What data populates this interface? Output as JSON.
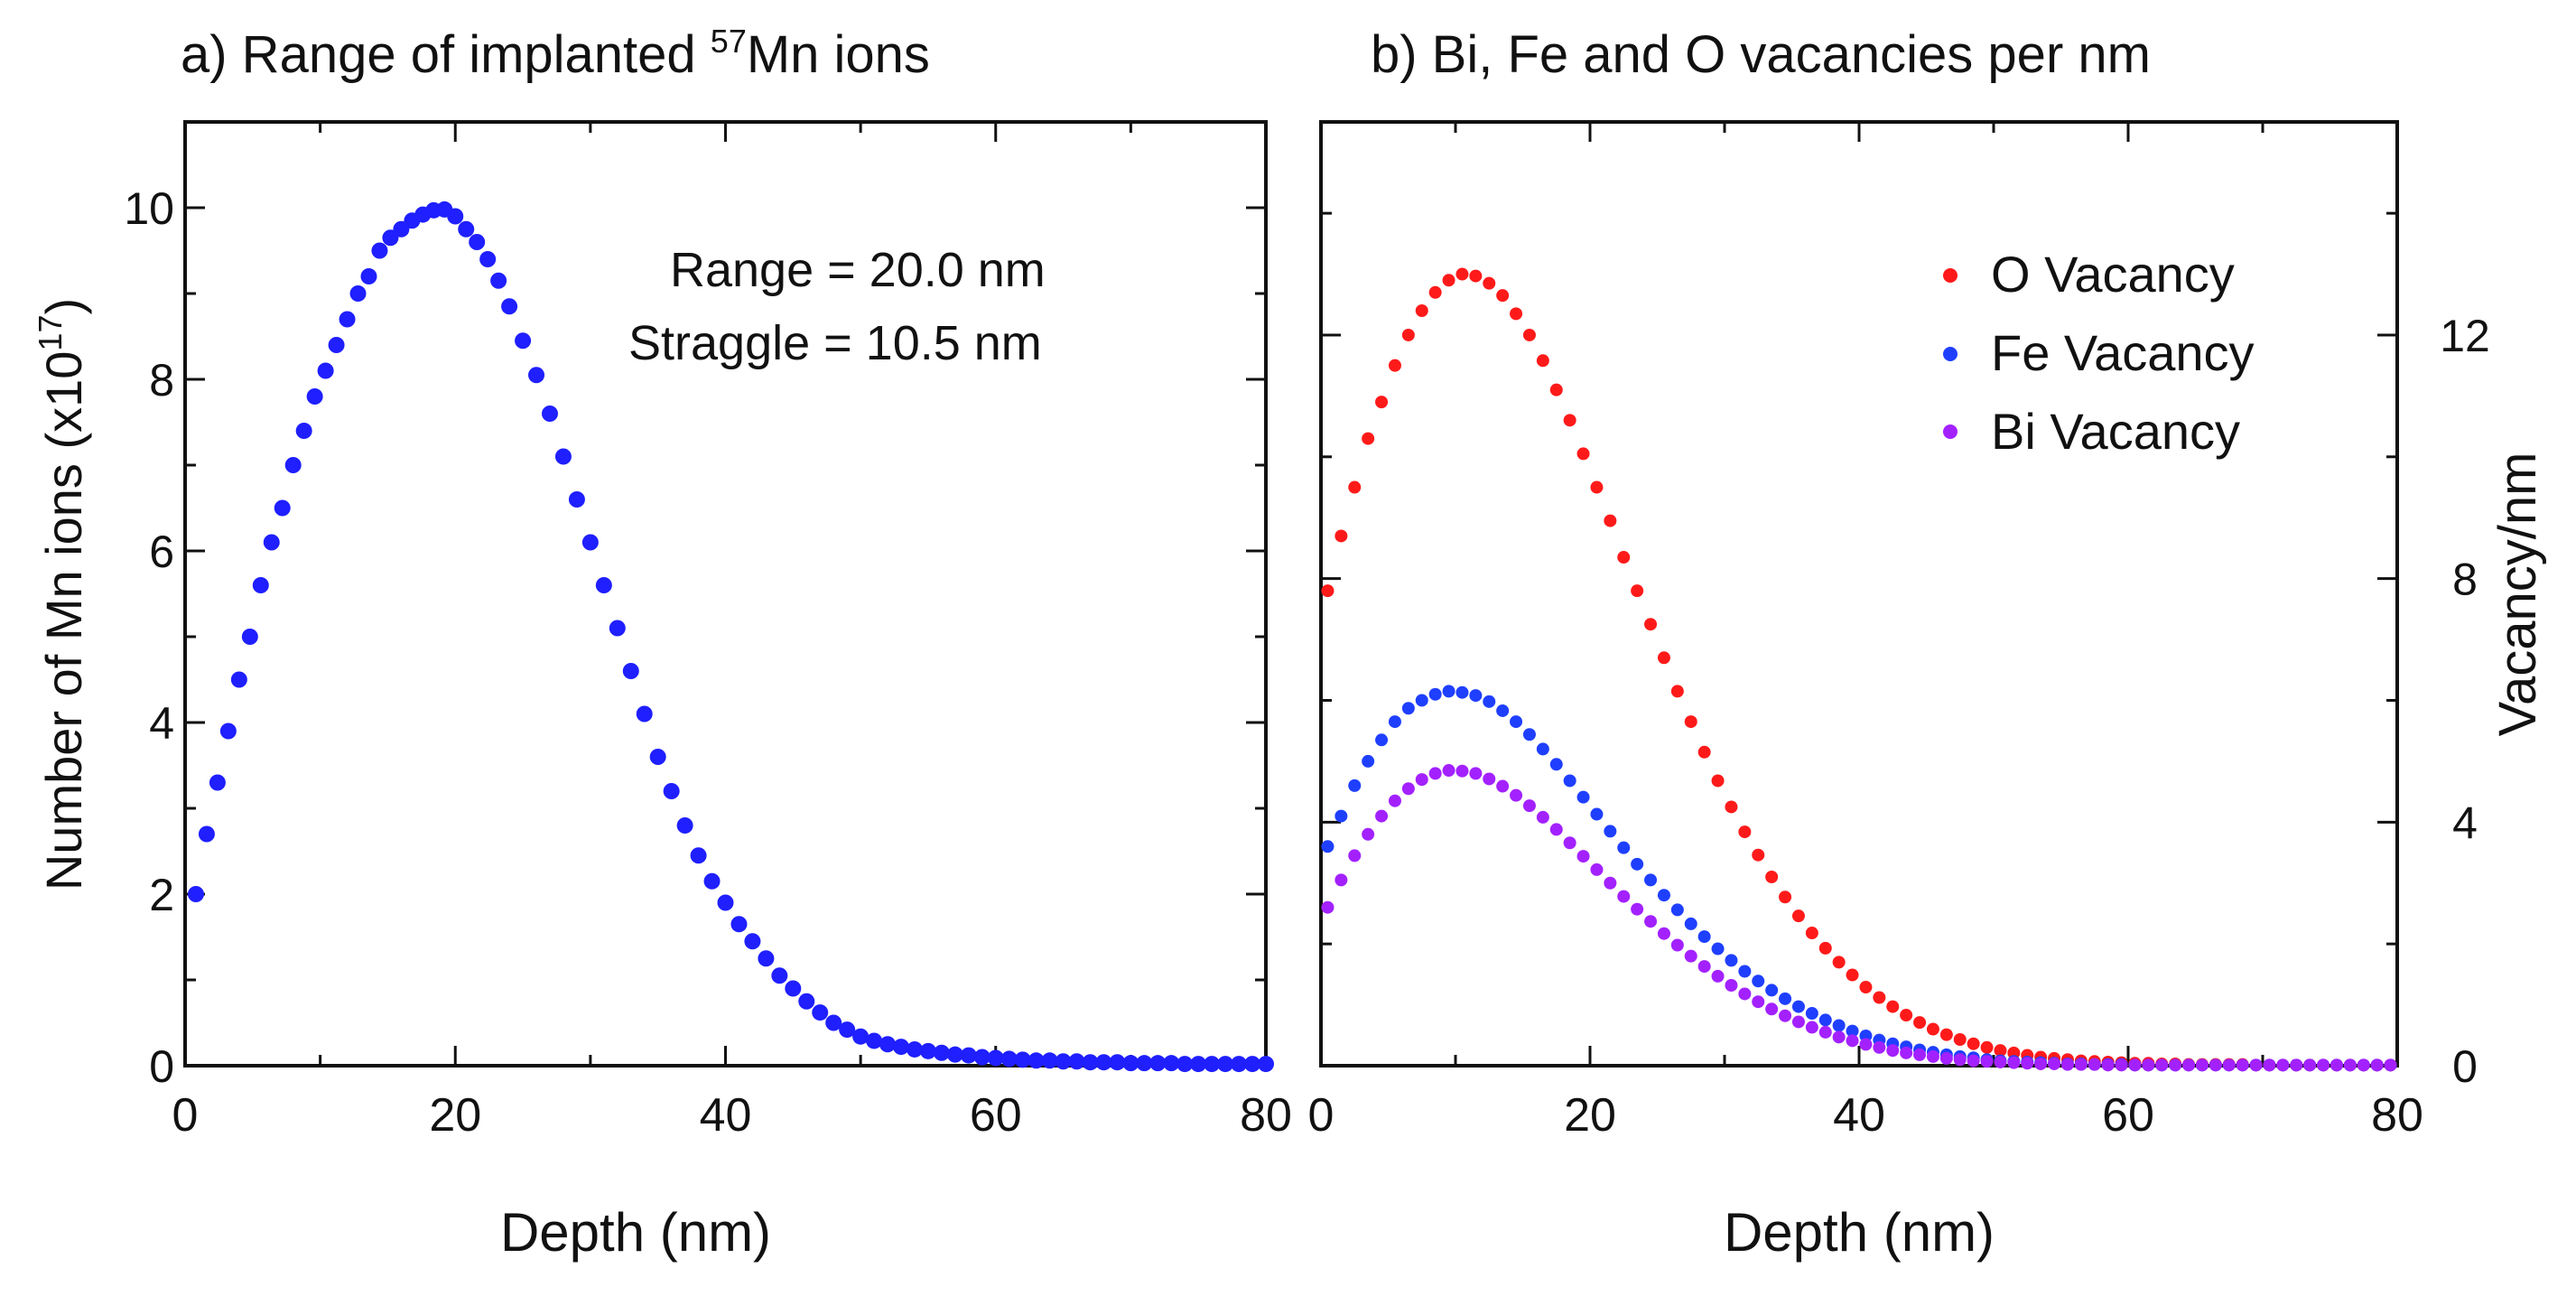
{
  "chart_data": [
    {
      "id": "a",
      "type": "scatter",
      "title_prefix": "a) Range of implanted ",
      "title_sup": "57",
      "title_suffix": "Mn ions",
      "xlabel": "Depth (nm)",
      "ylabel_main": "Number of Mn ions (x10",
      "ylabel_sup": "17",
      "ylabel_close": ")",
      "xlim": [
        0,
        80
      ],
      "ylim": [
        0,
        11
      ],
      "xticks": [
        0,
        20,
        40,
        60,
        80
      ],
      "xtick_labels": [
        "0",
        "20",
        "40",
        "60",
        "80"
      ],
      "yticks": [
        0,
        2,
        4,
        6,
        8,
        10
      ],
      "ytick_labels": [
        "0",
        "2",
        "4",
        "6",
        "8",
        "10"
      ],
      "annotations": [
        "Range = 20.0 nm",
        "Straggle = 10.5 nm"
      ],
      "series": [
        {
          "name": "Mn ions",
          "color": "#1f1fff",
          "x": [
            0.8,
            1.6,
            2.4,
            3.2,
            4.0,
            4.8,
            5.6,
            6.4,
            7.2,
            8.0,
            8.8,
            9.6,
            10.4,
            11.2,
            12.0,
            12.8,
            13.6,
            14.4,
            15.2,
            16.0,
            16.8,
            17.6,
            18.4,
            19.2,
            20.0,
            20.8,
            21.6,
            22.4,
            23.2,
            24.0,
            25.0,
            26.0,
            27.0,
            28.0,
            29.0,
            30.0,
            31.0,
            32.0,
            33.0,
            34.0,
            35.0,
            36.0,
            37.0,
            38.0,
            39.0,
            40.0,
            41.0,
            42.0,
            43.0,
            44.0,
            45.0,
            46.0,
            47.0,
            48.0,
            49.0,
            50.0,
            51.0,
            52.0,
            53.0,
            54.0,
            55.0,
            56.0,
            57.0,
            58.0,
            59.0,
            60.0,
            61.0,
            62.0,
            63.0,
            64.0,
            65.0,
            66.0,
            67.0,
            68.0,
            69.0,
            70.0,
            71.0,
            72.0,
            73.0,
            74.0,
            75.0,
            76.0,
            77.0,
            78.0,
            79.0,
            80.0
          ],
          "y": [
            2.0,
            2.7,
            3.3,
            3.9,
            4.5,
            5.0,
            5.6,
            6.1,
            6.5,
            7.0,
            7.4,
            7.8,
            8.1,
            8.4,
            8.7,
            9.0,
            9.2,
            9.5,
            9.65,
            9.75,
            9.85,
            9.92,
            9.97,
            9.98,
            9.9,
            9.75,
            9.6,
            9.4,
            9.15,
            8.85,
            8.45,
            8.05,
            7.6,
            7.1,
            6.6,
            6.1,
            5.6,
            5.1,
            4.6,
            4.1,
            3.6,
            3.2,
            2.8,
            2.45,
            2.15,
            1.9,
            1.65,
            1.45,
            1.25,
            1.05,
            0.9,
            0.75,
            0.62,
            0.5,
            0.42,
            0.34,
            0.29,
            0.25,
            0.22,
            0.19,
            0.17,
            0.15,
            0.13,
            0.12,
            0.1,
            0.09,
            0.08,
            0.07,
            0.06,
            0.06,
            0.05,
            0.05,
            0.04,
            0.04,
            0.04,
            0.03,
            0.03,
            0.03,
            0.03,
            0.02,
            0.02,
            0.02,
            0.02,
            0.02,
            0.02,
            0.02
          ]
        }
      ]
    },
    {
      "id": "b",
      "type": "scatter",
      "title": "b) Bi, Fe and O vacancies per nm",
      "xlabel": "Depth (nm)",
      "ylabel_right": "Vacancy/nm",
      "xlim": [
        0,
        80
      ],
      "ylim": [
        0,
        15.5
      ],
      "xticks": [
        0,
        20,
        40,
        60,
        80
      ],
      "xtick_labels": [
        "0",
        "20",
        "40",
        "60",
        "80"
      ],
      "yticks": [
        0,
        4,
        8,
        12
      ],
      "ytick_labels": [
        "0",
        "4",
        "8",
        "12"
      ],
      "legend_position": "top-right",
      "series": [
        {
          "name": "O Vacancy",
          "color": "#ff1a1a",
          "x": [
            0.5,
            1.5,
            2.5,
            3.5,
            4.5,
            5.5,
            6.5,
            7.5,
            8.5,
            9.5,
            10.5,
            11.5,
            12.5,
            13.5,
            14.5,
            15.5,
            16.5,
            17.5,
            18.5,
            19.5,
            20.5,
            21.5,
            22.5,
            23.5,
            24.5,
            25.5,
            26.5,
            27.5,
            28.5,
            29.5,
            30.5,
            31.5,
            32.5,
            33.5,
            34.5,
            35.5,
            36.5,
            37.5,
            38.5,
            39.5,
            40.5,
            41.5,
            42.5,
            43.5,
            44.5,
            45.5,
            46.5,
            47.5,
            48.5,
            49.5,
            50.5,
            51.5,
            52.5,
            53.5,
            54.5,
            55.5,
            56.5,
            57.5,
            58.5,
            59.5,
            60.5,
            61.5,
            62.5,
            63.5,
            64.5,
            65.5,
            66.5,
            67.5,
            68.5,
            69.5,
            70.5,
            71.5,
            72.5,
            73.5,
            74.5,
            75.5,
            76.5,
            77.5,
            78.5,
            79.5
          ],
          "y": [
            7.8,
            8.7,
            9.5,
            10.3,
            10.9,
            11.5,
            12.0,
            12.4,
            12.7,
            12.9,
            13.0,
            12.97,
            12.85,
            12.65,
            12.35,
            12.0,
            11.58,
            11.1,
            10.6,
            10.05,
            9.5,
            8.95,
            8.35,
            7.8,
            7.25,
            6.7,
            6.15,
            5.65,
            5.15,
            4.68,
            4.25,
            3.84,
            3.46,
            3.1,
            2.77,
            2.46,
            2.18,
            1.93,
            1.7,
            1.49,
            1.29,
            1.12,
            0.97,
            0.83,
            0.71,
            0.6,
            0.51,
            0.43,
            0.36,
            0.3,
            0.25,
            0.21,
            0.17,
            0.14,
            0.12,
            0.1,
            0.08,
            0.07,
            0.06,
            0.05,
            0.04,
            0.04,
            0.03,
            0.03,
            0.02,
            0.02,
            0.02,
            0.02,
            0.02,
            0.01,
            0.01,
            0.01,
            0.01,
            0.01,
            0.01,
            0.01,
            0.01,
            0.01,
            0.01,
            0.01
          ]
        },
        {
          "name": "Fe Vacancy",
          "color": "#1f3fff",
          "x": [
            0.5,
            1.5,
            2.5,
            3.5,
            4.5,
            5.5,
            6.5,
            7.5,
            8.5,
            9.5,
            10.5,
            11.5,
            12.5,
            13.5,
            14.5,
            15.5,
            16.5,
            17.5,
            18.5,
            19.5,
            20.5,
            21.5,
            22.5,
            23.5,
            24.5,
            25.5,
            26.5,
            27.5,
            28.5,
            29.5,
            30.5,
            31.5,
            32.5,
            33.5,
            34.5,
            35.5,
            36.5,
            37.5,
            38.5,
            39.5,
            40.5,
            41.5,
            42.5,
            43.5,
            44.5,
            45.5,
            46.5,
            47.5,
            48.5,
            49.5,
            50.5,
            51.5,
            52.5,
            53.5,
            54.5,
            55.5,
            56.5,
            57.5,
            58.5,
            59.5,
            60.5,
            61.5,
            62.5,
            63.5,
            64.5,
            65.5,
            66.5,
            67.5,
            68.5,
            69.5,
            70.5,
            71.5,
            72.5,
            73.5,
            74.5,
            75.5,
            76.5,
            77.5,
            78.5,
            79.5
          ],
          "y": [
            3.6,
            4.1,
            4.6,
            5.0,
            5.35,
            5.65,
            5.87,
            6.0,
            6.1,
            6.15,
            6.13,
            6.08,
            5.98,
            5.83,
            5.65,
            5.44,
            5.2,
            4.95,
            4.68,
            4.41,
            4.13,
            3.85,
            3.58,
            3.31,
            3.05,
            2.8,
            2.56,
            2.33,
            2.12,
            1.92,
            1.73,
            1.55,
            1.39,
            1.24,
            1.1,
            0.97,
            0.86,
            0.75,
            0.66,
            0.57,
            0.49,
            0.42,
            0.36,
            0.31,
            0.26,
            0.22,
            0.18,
            0.15,
            0.13,
            0.1,
            0.08,
            0.07,
            0.06,
            0.05,
            0.04,
            0.03,
            0.03,
            0.02,
            0.02,
            0.02,
            0.01,
            0.01,
            0.01,
            0.01,
            0.01,
            0.01,
            0.01,
            0.01,
            0.01,
            0.01,
            0.01,
            0.01,
            0.01,
            0.01,
            0.01,
            0.01,
            0.01,
            0.01,
            0.01,
            0.01
          ]
        },
        {
          "name": "Bi Vacancy",
          "color": "#a321ff",
          "x": [
            0.5,
            1.5,
            2.5,
            3.5,
            4.5,
            5.5,
            6.5,
            7.5,
            8.5,
            9.5,
            10.5,
            11.5,
            12.5,
            13.5,
            14.5,
            15.5,
            16.5,
            17.5,
            18.5,
            19.5,
            20.5,
            21.5,
            22.5,
            23.5,
            24.5,
            25.5,
            26.5,
            27.5,
            28.5,
            29.5,
            30.5,
            31.5,
            32.5,
            33.5,
            34.5,
            35.5,
            36.5,
            37.5,
            38.5,
            39.5,
            40.5,
            41.5,
            42.5,
            43.5,
            44.5,
            45.5,
            46.5,
            47.5,
            48.5,
            49.5,
            50.5,
            51.5,
            52.5,
            53.5,
            54.5,
            55.5,
            56.5,
            57.5,
            58.5,
            59.5,
            60.5,
            61.5,
            62.5,
            63.5,
            64.5,
            65.5,
            66.5,
            67.5,
            68.5,
            69.5,
            70.5,
            71.5,
            72.5,
            73.5,
            74.5,
            75.5,
            76.5,
            77.5,
            78.5,
            79.5
          ],
          "y": [
            2.6,
            3.05,
            3.45,
            3.8,
            4.1,
            4.35,
            4.55,
            4.7,
            4.8,
            4.85,
            4.84,
            4.8,
            4.71,
            4.59,
            4.44,
            4.27,
            4.08,
            3.88,
            3.66,
            3.44,
            3.22,
            3.0,
            2.78,
            2.57,
            2.37,
            2.17,
            1.98,
            1.8,
            1.63,
            1.47,
            1.32,
            1.18,
            1.05,
            0.93,
            0.82,
            0.72,
            0.63,
            0.55,
            0.47,
            0.41,
            0.35,
            0.3,
            0.25,
            0.21,
            0.18,
            0.15,
            0.12,
            0.1,
            0.08,
            0.07,
            0.06,
            0.05,
            0.04,
            0.03,
            0.03,
            0.02,
            0.02,
            0.02,
            0.01,
            0.01,
            0.01,
            0.01,
            0.01,
            0.01,
            0.01,
            0.01,
            0.01,
            0.01,
            0.01,
            0.01,
            0.01,
            0.01,
            0.01,
            0.01,
            0.01,
            0.01,
            0.01,
            0.01,
            0.01,
            0.01
          ]
        }
      ]
    }
  ]
}
